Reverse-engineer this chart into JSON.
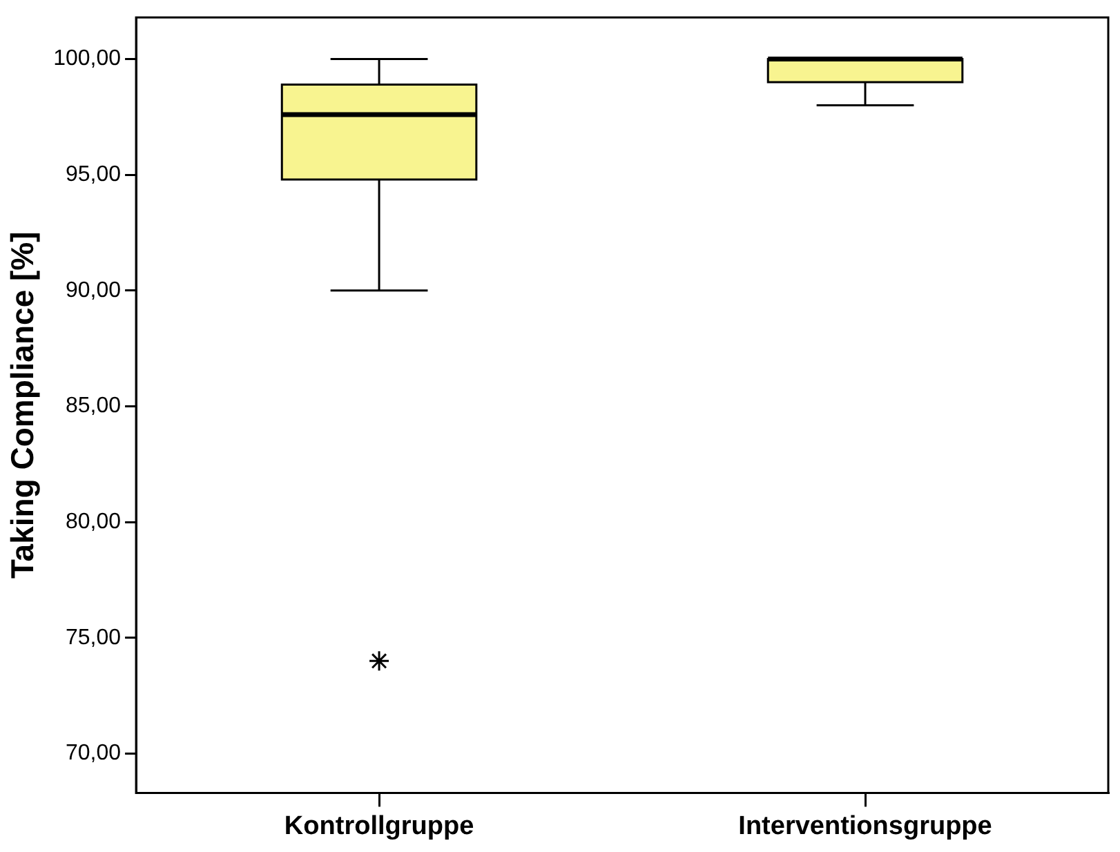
{
  "chart_data": {
    "type": "box",
    "ylabel": "Taking Compliance [%]",
    "categories": [
      "Kontrollgruppe",
      "Interventionsgruppe"
    ],
    "color": "#f8f490",
    "marker": "star",
    "grid": false,
    "legend": false,
    "boxes": [
      {
        "low": 90,
        "q1": 94.8,
        "median": 97.6,
        "q3": 98.9,
        "high": 100,
        "outliers": [
          74
        ]
      },
      {
        "low": 98,
        "q1": 99,
        "median": 100,
        "q3": 100,
        "high": 100
      }
    ],
    "ylim": [
      68.3,
      101.8
    ],
    "yticks": [
      {
        "value": 70,
        "label": "70,00"
      },
      {
        "value": 75,
        "label": "75,00"
      },
      {
        "value": 80,
        "label": "80,00"
      },
      {
        "value": 85,
        "label": "85,00"
      },
      {
        "value": 90,
        "label": "90,00"
      },
      {
        "value": 95,
        "label": "95,00"
      },
      {
        "value": 100,
        "label": "100,00"
      }
    ]
  }
}
